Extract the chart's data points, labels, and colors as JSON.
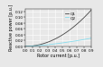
{
  "title": "",
  "xlabel": "Rotor current [p.u.]",
  "ylabel": "Reactive power [p.u.]",
  "xlim": [
    0,
    0.9
  ],
  "ylim": [
    0,
    0.13
  ],
  "xticks": [
    0,
    0.1,
    0.2,
    0.3,
    0.4,
    0.5,
    0.6,
    0.7,
    0.8,
    0.9
  ],
  "yticks": [
    0,
    0.02,
    0.04,
    0.06,
    0.08,
    0.1,
    0.12
  ],
  "x": [
    0,
    0.05,
    0.1,
    0.15,
    0.2,
    0.25,
    0.3,
    0.35,
    0.4,
    0.45,
    0.5,
    0.55,
    0.6,
    0.65,
    0.7,
    0.75,
    0.8,
    0.85,
    0.9
  ],
  "curve1_coeff": 0.155,
  "curve2_coeff": 0.033,
  "color1": "#444444",
  "color2": "#88ddee",
  "legend1": "Q1",
  "legend2": "Q2",
  "xlabel_fontsize": 3.5,
  "ylabel_fontsize": 3.5,
  "tick_fontsize": 3.0,
  "legend_fontsize": 3.2,
  "linewidth": 0.6,
  "background_color": "#e8e8e8",
  "grid_color": "#ffffff",
  "grid_linewidth": 0.4
}
